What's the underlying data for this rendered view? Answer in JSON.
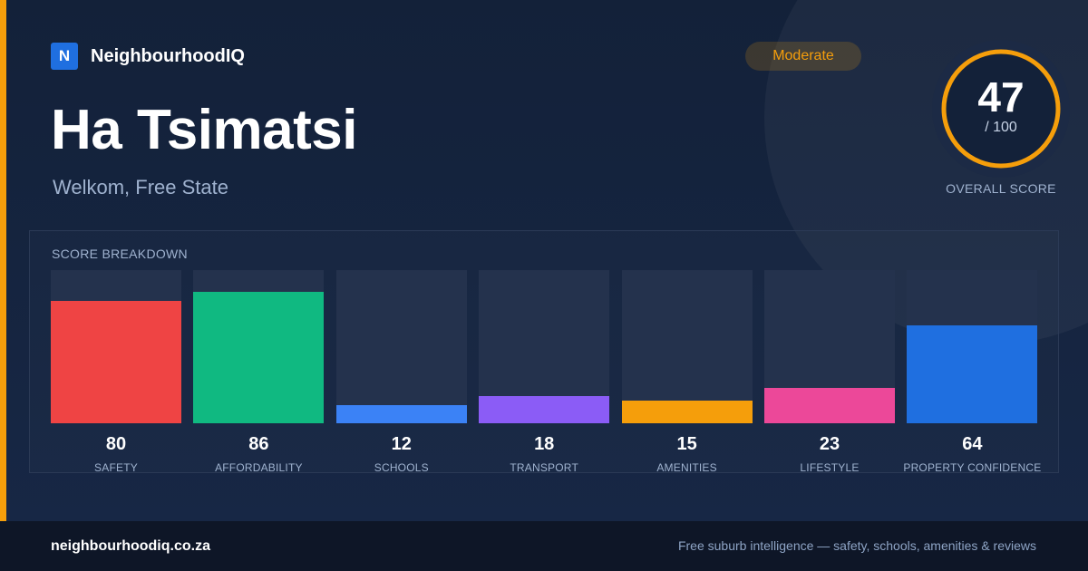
{
  "brand": {
    "logo_letter": "N",
    "name": "NeighbourhoodIQ"
  },
  "suburb": {
    "name": "Ha Tsimatsi",
    "location": "Welkom, Free State"
  },
  "rating_badge": "Moderate",
  "overall": {
    "score": "47",
    "out_of": "/ 100",
    "label": "OVERALL SCORE",
    "fraction": 0.47
  },
  "colors": {
    "accent": "#f59e0b",
    "ring_track": "#243250",
    "bar_track": "#24324d"
  },
  "chart_data": {
    "type": "bar",
    "title": "SCORE BREAKDOWN",
    "categories": [
      "SAFETY",
      "AFFORDABILITY",
      "SCHOOLS",
      "TRANSPORT",
      "AMENITIES",
      "LIFESTYLE",
      "PROPERTY CONFIDENCE"
    ],
    "values": [
      80,
      86,
      12,
      18,
      15,
      23,
      64
    ],
    "colors": [
      "#ef4444",
      "#10b981",
      "#3b82f6",
      "#8b5cf6",
      "#f59e0b",
      "#ec4899",
      "#1f6fe0"
    ],
    "ylim": [
      0,
      100
    ]
  },
  "footer": {
    "url": "neighbourhoodiq.co.za",
    "tagline": "Free suburb intelligence — safety, schools, amenities & reviews"
  }
}
